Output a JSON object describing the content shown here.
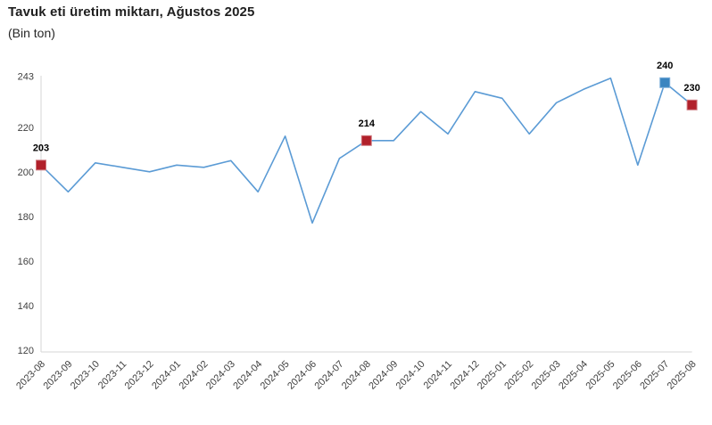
{
  "header": {
    "title": "Tavuk eti üretim miktarı, Ağustos 2025",
    "subtitle": "(Bin ton)"
  },
  "chart_data": {
    "type": "line",
    "title": "Tavuk eti üretim miktarı, Ağustos 2025",
    "subtitle": "(Bin ton)",
    "unit": "Bin ton",
    "x": [
      "2023-08",
      "2023-09",
      "2023-10",
      "2023-11",
      "2023-12",
      "2024-01",
      "2024-02",
      "2024-03",
      "2024-04",
      "2024-05",
      "2024-06",
      "2024-07",
      "2024-08",
      "2024-09",
      "2024-10",
      "2024-11",
      "2024-12",
      "2025-01",
      "2025-02",
      "2025-03",
      "2025-04",
      "2025-05",
      "2025-06",
      "2025-07",
      "2025-08"
    ],
    "series": [
      {
        "name": "Tavuk eti üretim miktarı",
        "values": [
          203,
          191,
          204,
          202,
          200,
          203,
          202,
          205,
          191,
          216,
          177,
          206,
          214,
          214,
          227,
          217,
          236,
          233,
          217,
          231,
          237,
          242,
          203,
          240,
          230
        ]
      }
    ],
    "ylim": [
      120,
      243
    ],
    "yticks": [
      243,
      220,
      200,
      180,
      160,
      140,
      120
    ],
    "grid": false,
    "legend_position": "none",
    "annotations": [
      {
        "x": "2023-08",
        "label": "203",
        "marker": "square",
        "marker_color": "#b1202a"
      },
      {
        "x": "2024-08",
        "label": "214",
        "marker": "square",
        "marker_color": "#b1202a"
      },
      {
        "x": "2025-07",
        "label": "240",
        "marker": "square",
        "marker_color": "#3a85c0"
      },
      {
        "x": "2025-08",
        "label": "230",
        "marker": "square",
        "marker_color": "#b1202a"
      }
    ],
    "colors": {
      "line": "#5b9bd5",
      "marker_august": "#b1202a",
      "marker_previous_month": "#3a85c0",
      "axis": "#d6d6d6",
      "tick_text": "#404040",
      "annotation_text": "#000000"
    }
  }
}
